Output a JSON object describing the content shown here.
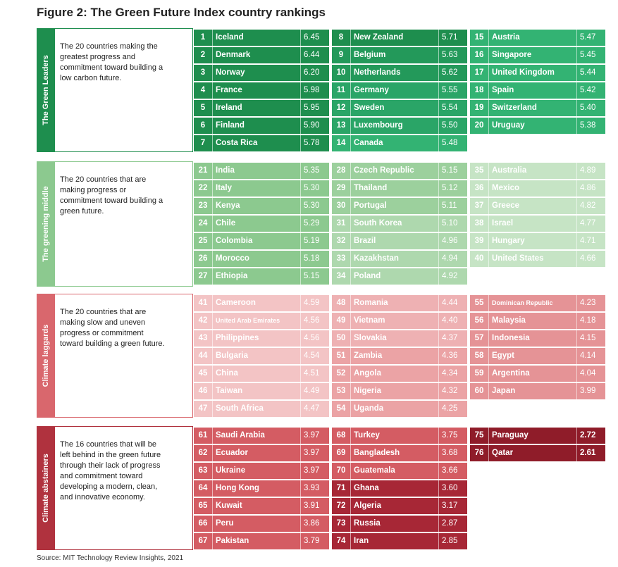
{
  "title": "Figure 2: The Green Future Index country rankings",
  "source": "Source: MIT Technology Review Insights, 2021",
  "chart_data": {
    "type": "table",
    "groups": [
      {
        "label": "The Green Leaders",
        "description": "The 20 countries making the greatest progress and commitment toward building a low carbon future.",
        "color": "#1e8e4e",
        "columns": [
          [
            {
              "rank": 1,
              "country": "Iceland",
              "score": "6.45",
              "color": "#1e8e4e"
            },
            {
              "rank": 2,
              "country": "Denmark",
              "score": "6.44",
              "color": "#1e8e4e"
            },
            {
              "rank": 3,
              "country": "Norway",
              "score": "6.20",
              "color": "#1e8e4e"
            },
            {
              "rank": 4,
              "country": "France",
              "score": "5.98",
              "color": "#1e8e4e"
            },
            {
              "rank": 5,
              "country": "Ireland",
              "score": "5.95",
              "color": "#1e8e4e"
            },
            {
              "rank": 6,
              "country": "Finland",
              "score": "5.90",
              "color": "#1e8e4e"
            },
            {
              "rank": 7,
              "country": "Costa Rica",
              "score": "5.78",
              "color": "#1e8e4e"
            }
          ],
          [
            {
              "rank": 8,
              "country": "New Zealand",
              "score": "5.71",
              "color": "#1e8e4e"
            },
            {
              "rank": 9,
              "country": "Belgium",
              "score": "5.63",
              "color": "#23995a"
            },
            {
              "rank": 10,
              "country": "Netherlands",
              "score": "5.62",
              "color": "#23995a"
            },
            {
              "rank": 11,
              "country": "Germany",
              "score": "5.55",
              "color": "#2aa567"
            },
            {
              "rank": 12,
              "country": "Sweden",
              "score": "5.54",
              "color": "#2aa567"
            },
            {
              "rank": 13,
              "country": "Luxembourg",
              "score": "5.50",
              "color": "#2aa567"
            },
            {
              "rank": 14,
              "country": "Canada",
              "score": "5.48",
              "color": "#33b373"
            }
          ],
          [
            {
              "rank": 15,
              "country": "Austria",
              "score": "5.47",
              "color": "#33b373"
            },
            {
              "rank": 16,
              "country": "Singapore",
              "score": "5.45",
              "color": "#33b373"
            },
            {
              "rank": 17,
              "country": "United Kingdom",
              "score": "5.44",
              "color": "#33b373"
            },
            {
              "rank": 18,
              "country": "Spain",
              "score": "5.42",
              "color": "#33b373"
            },
            {
              "rank": 19,
              "country": "Switzerland",
              "score": "5.40",
              "color": "#33b373"
            },
            {
              "rank": 20,
              "country": "Uruguay",
              "score": "5.38",
              "color": "#33b373"
            }
          ]
        ]
      },
      {
        "label": "The greening middle",
        "description": "The 20 countries that are making progress or commitment toward building a green future.",
        "color": "#8cc98f",
        "columns": [
          [
            {
              "rank": 21,
              "country": "India",
              "score": "5.35",
              "color": "#8cc98f"
            },
            {
              "rank": 22,
              "country": "Italy",
              "score": "5.30",
              "color": "#8cc98f"
            },
            {
              "rank": 23,
              "country": "Kenya",
              "score": "5.30",
              "color": "#8cc98f"
            },
            {
              "rank": 24,
              "country": "Chile",
              "score": "5.29",
              "color": "#8cc98f"
            },
            {
              "rank": 25,
              "country": "Colombia",
              "score": "5.19",
              "color": "#8cc98f"
            },
            {
              "rank": 26,
              "country": "Morocco",
              "score": "5.18",
              "color": "#8cc98f"
            },
            {
              "rank": 27,
              "country": "Ethiopia",
              "score": "5.15",
              "color": "#8cc98f"
            }
          ],
          [
            {
              "rank": 28,
              "country": "Czech Republic",
              "score": "5.15",
              "color": "#9cd09d"
            },
            {
              "rank": 29,
              "country": "Thailand",
              "score": "5.12",
              "color": "#9cd09d"
            },
            {
              "rank": 30,
              "country": "Portugal",
              "score": "5.11",
              "color": "#9cd09d"
            },
            {
              "rank": 31,
              "country": "South Korea",
              "score": "5.10",
              "color": "#aed8ae"
            },
            {
              "rank": 32,
              "country": "Brazil",
              "score": "4.96",
              "color": "#aed8ae"
            },
            {
              "rank": 33,
              "country": "Kazakhstan",
              "score": "4.94",
              "color": "#aed8ae"
            },
            {
              "rank": 34,
              "country": "Poland",
              "score": "4.92",
              "color": "#aed8ae"
            }
          ],
          [
            {
              "rank": 35,
              "country": "Australia",
              "score": "4.89",
              "color": "#c6e4c5"
            },
            {
              "rank": 36,
              "country": "Mexico",
              "score": "4.86",
              "color": "#c6e4c5"
            },
            {
              "rank": 37,
              "country": "Greece",
              "score": "4.82",
              "color": "#c6e4c5"
            },
            {
              "rank": 38,
              "country": "Israel",
              "score": "4.77",
              "color": "#c6e4c5"
            },
            {
              "rank": 39,
              "country": "Hungary",
              "score": "4.71",
              "color": "#c6e4c5"
            },
            {
              "rank": 40,
              "country": "United States",
              "score": "4.66",
              "color": "#c6e4c5"
            }
          ]
        ]
      },
      {
        "label": "Climate laggards",
        "description": "The 20 countries that are making slow and uneven progress or commitment toward building a green future.",
        "color": "#d9676d",
        "columns": [
          [
            {
              "rank": 41,
              "country": "Cameroon",
              "score": "4.59",
              "color": "#f3c4c5"
            },
            {
              "rank": 42,
              "country": "United Arab Emirates",
              "score": "4.56",
              "color": "#f3c4c5"
            },
            {
              "rank": 43,
              "country": "Philippines",
              "score": "4.56",
              "color": "#f3c4c5"
            },
            {
              "rank": 44,
              "country": "Bulgaria",
              "score": "4.54",
              "color": "#f3c4c5"
            },
            {
              "rank": 45,
              "country": "China",
              "score": "4.51",
              "color": "#f3c4c5"
            },
            {
              "rank": 46,
              "country": "Taiwan",
              "score": "4.49",
              "color": "#f3c4c5"
            },
            {
              "rank": 47,
              "country": "South Africa",
              "score": "4.47",
              "color": "#f3c4c5"
            }
          ],
          [
            {
              "rank": 48,
              "country": "Romania",
              "score": "4.44",
              "color": "#eeb1b3"
            },
            {
              "rank": 49,
              "country": "Vietnam",
              "score": "4.40",
              "color": "#eeb1b3"
            },
            {
              "rank": 50,
              "country": "Slovakia",
              "score": "4.37",
              "color": "#eeb1b3"
            },
            {
              "rank": 51,
              "country": "Zambia",
              "score": "4.36",
              "color": "#eba3a5"
            },
            {
              "rank": 52,
              "country": "Angola",
              "score": "4.34",
              "color": "#eba3a5"
            },
            {
              "rank": 53,
              "country": "Nigeria",
              "score": "4.32",
              "color": "#eba3a5"
            },
            {
              "rank": 54,
              "country": "Uganda",
              "score": "4.25",
              "color": "#eba3a5"
            }
          ],
          [
            {
              "rank": 55,
              "country": "Dominican Republic",
              "score": "4.23",
              "color": "#e59396"
            },
            {
              "rank": 56,
              "country": "Malaysia",
              "score": "4.18",
              "color": "#e59396"
            },
            {
              "rank": 57,
              "country": "Indonesia",
              "score": "4.15",
              "color": "#e59396"
            },
            {
              "rank": 58,
              "country": "Egypt",
              "score": "4.14",
              "color": "#e59396"
            },
            {
              "rank": 59,
              "country": "Argentina",
              "score": "4.04",
              "color": "#e59396"
            },
            {
              "rank": 60,
              "country": "Japan",
              "score": "3.99",
              "color": "#e59396"
            }
          ]
        ]
      },
      {
        "label": "Climate abstainers",
        "description": "The 16 countries that will be left behind in the green future through their lack of progress and commitment toward developing a modern, clean, and innovative economy.",
        "color": "#b0323e",
        "columns": [
          [
            {
              "rank": 61,
              "country": "Saudi Arabia",
              "score": "3.97",
              "color": "#d45c63"
            },
            {
              "rank": 62,
              "country": "Ecuador",
              "score": "3.97",
              "color": "#d45c63"
            },
            {
              "rank": 63,
              "country": "Ukraine",
              "score": "3.97",
              "color": "#d45c63"
            },
            {
              "rank": 64,
              "country": "Hong Kong",
              "score": "3.93",
              "color": "#d45c63"
            },
            {
              "rank": 65,
              "country": "Kuwait",
              "score": "3.91",
              "color": "#d45c63"
            },
            {
              "rank": 66,
              "country": "Peru",
              "score": "3.86",
              "color": "#d45c63"
            },
            {
              "rank": 67,
              "country": "Pakistan",
              "score": "3.79",
              "color": "#d45c63"
            }
          ],
          [
            {
              "rank": 68,
              "country": "Turkey",
              "score": "3.75",
              "color": "#d45c63"
            },
            {
              "rank": 69,
              "country": "Bangladesh",
              "score": "3.68",
              "color": "#d45c63"
            },
            {
              "rank": 70,
              "country": "Guatemala",
              "score": "3.66",
              "color": "#d45c63"
            },
            {
              "rank": 71,
              "country": "Ghana",
              "score": "3.60",
              "color": "#a72736"
            },
            {
              "rank": 72,
              "country": "Algeria",
              "score": "3.17",
              "color": "#a72736"
            },
            {
              "rank": 73,
              "country": "Russia",
              "score": "2.87",
              "color": "#a72736"
            },
            {
              "rank": 74,
              "country": "Iran",
              "score": "2.85",
              "color": "#a72736"
            }
          ],
          [
            {
              "rank": 75,
              "country": "Paraguay",
              "score": "2.72",
              "color": "#8f1c29"
            },
            {
              "rank": 76,
              "country": "Qatar",
              "score": "2.61",
              "color": "#8f1c29"
            }
          ]
        ]
      }
    ]
  }
}
